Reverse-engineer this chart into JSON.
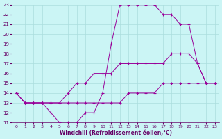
{
  "line1_x": [
    0,
    1,
    2,
    3,
    4,
    5,
    6,
    7,
    8,
    9,
    10,
    11,
    12,
    13,
    14,
    15,
    16,
    17,
    18,
    19,
    20,
    21,
    22,
    23
  ],
  "line1_y": [
    14,
    13,
    13,
    13,
    12,
    11,
    11,
    11,
    12,
    12,
    14,
    19,
    23,
    23,
    23,
    23,
    23,
    22,
    22,
    21,
    21,
    17,
    15,
    15
  ],
  "line2_x": [
    0,
    1,
    2,
    3,
    4,
    5,
    6,
    7,
    8,
    9,
    10,
    11,
    12,
    13,
    14,
    15,
    16,
    17,
    18,
    19,
    20,
    21,
    22,
    23
  ],
  "line2_y": [
    14,
    13,
    13,
    13,
    13,
    13,
    14,
    15,
    15,
    16,
    16,
    16,
    17,
    17,
    17,
    17,
    17,
    17,
    18,
    18,
    18,
    17,
    15,
    15
  ],
  "line3_x": [
    0,
    1,
    2,
    3,
    4,
    5,
    6,
    7,
    8,
    9,
    10,
    11,
    12,
    13,
    14,
    15,
    16,
    17,
    18,
    19,
    20,
    21,
    22,
    23
  ],
  "line3_y": [
    14,
    13,
    13,
    13,
    13,
    13,
    13,
    13,
    13,
    13,
    13,
    13,
    13,
    14,
    14,
    14,
    14,
    15,
    15,
    15,
    15,
    15,
    15,
    15
  ],
  "line_color": "#990099",
  "bg_color": "#cbf5f5",
  "grid_color": "#aadddd",
  "xlabel": "Windchill (Refroidissement éolien,°C)",
  "xlabel_color": "#660066",
  "tick_color": "#660066",
  "xlim": [
    -0.5,
    23.5
  ],
  "ylim": [
    11,
    23
  ],
  "xticks": [
    0,
    1,
    2,
    3,
    4,
    5,
    6,
    7,
    8,
    9,
    10,
    11,
    12,
    13,
    14,
    15,
    16,
    17,
    18,
    19,
    20,
    21,
    22,
    23
  ],
  "yticks": [
    11,
    12,
    13,
    14,
    15,
    16,
    17,
    18,
    19,
    20,
    21,
    22,
    23
  ],
  "figsize": [
    3.2,
    2.0
  ],
  "dpi": 100
}
